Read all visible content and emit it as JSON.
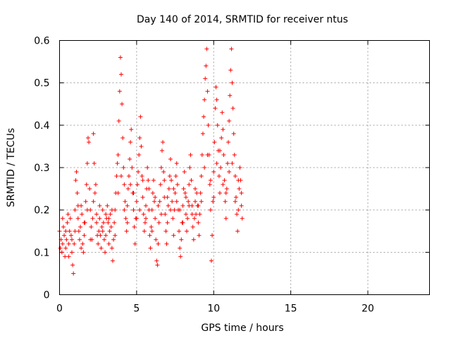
{
  "chart_data": {
    "type": "scatter",
    "title": "Day 140 of 2014, SRMTID for receiver ntus",
    "xlabel": "GPS time / hours",
    "ylabel": "SRMTID / TECUs",
    "xlim": [
      0,
      24
    ],
    "ylim": [
      0,
      0.6
    ],
    "x_ticks": [
      0,
      5,
      10,
      15,
      20
    ],
    "x_tick_labels": [
      "0",
      "5",
      "10",
      "15",
      "20"
    ],
    "y_ticks": [
      0,
      0.1,
      0.2,
      0.3,
      0.4,
      0.5,
      0.6
    ],
    "y_tick_labels": [
      "0",
      "0.1",
      "0.2",
      "0.3",
      "0.4",
      "0.5",
      "0.6"
    ],
    "grid": true,
    "marker": "plus",
    "color": "#ff0000",
    "series": [
      {
        "name": "SRMTID",
        "points": [
          [
            0.0,
            0.15
          ],
          [
            0.05,
            0.11
          ],
          [
            0.1,
            0.13
          ],
          [
            0.15,
            0.1
          ],
          [
            0.2,
            0.12
          ],
          [
            0.25,
            0.16
          ],
          [
            0.3,
            0.14
          ],
          [
            0.35,
            0.09
          ],
          [
            0.4,
            0.11
          ],
          [
            0.45,
            0.13
          ],
          [
            0.5,
            0.17
          ],
          [
            0.55,
            0.19
          ],
          [
            0.6,
            0.12
          ],
          [
            0.65,
            0.15
          ],
          [
            0.7,
            0.18
          ],
          [
            0.75,
            0.14
          ],
          [
            0.8,
            0.1
          ],
          [
            0.85,
            0.07
          ],
          [
            0.9,
            0.05
          ],
          [
            0.95,
            0.12
          ],
          [
            1.0,
            0.2
          ],
          [
            1.05,
            0.27
          ],
          [
            1.1,
            0.29
          ],
          [
            1.15,
            0.24
          ],
          [
            1.2,
            0.18
          ],
          [
            1.25,
            0.15
          ],
          [
            1.3,
            0.13
          ],
          [
            1.35,
            0.16
          ],
          [
            1.4,
            0.21
          ],
          [
            1.45,
            0.19
          ],
          [
            1.5,
            0.12
          ],
          [
            1.55,
            0.1
          ],
          [
            1.6,
            0.14
          ],
          [
            1.65,
            0.17
          ],
          [
            1.7,
            0.22
          ],
          [
            1.75,
            0.26
          ],
          [
            1.8,
            0.31
          ],
          [
            1.85,
            0.37
          ],
          [
            1.9,
            0.36
          ],
          [
            1.95,
            0.25
          ],
          [
            2.0,
            0.2
          ],
          [
            2.05,
            0.16
          ],
          [
            2.1,
            0.13
          ],
          [
            2.15,
            0.18
          ],
          [
            2.2,
            0.38
          ],
          [
            2.25,
            0.31
          ],
          [
            2.3,
            0.24
          ],
          [
            2.35,
            0.26
          ],
          [
            2.4,
            0.19
          ],
          [
            2.45,
            0.14
          ],
          [
            2.5,
            0.12
          ],
          [
            2.55,
            0.15
          ],
          [
            2.6,
            0.18
          ],
          [
            2.65,
            0.14
          ],
          [
            2.7,
            0.11
          ],
          [
            2.75,
            0.16
          ],
          [
            2.8,
            0.2
          ],
          [
            2.85,
            0.17
          ],
          [
            2.9,
            0.13
          ],
          [
            2.95,
            0.1
          ],
          [
            3.0,
            0.14
          ],
          [
            3.05,
            0.18
          ],
          [
            3.1,
            0.21
          ],
          [
            3.15,
            0.17
          ],
          [
            3.2,
            0.12
          ],
          [
            3.25,
            0.15
          ],
          [
            3.3,
            0.19
          ],
          [
            3.35,
            0.16
          ],
          [
            3.4,
            0.11
          ],
          [
            3.45,
            0.08
          ],
          [
            3.5,
            0.13
          ],
          [
            3.55,
            0.17
          ],
          [
            3.6,
            0.2
          ],
          [
            3.65,
            0.24
          ],
          [
            3.7,
            0.28
          ],
          [
            3.75,
            0.31
          ],
          [
            3.8,
            0.33
          ],
          [
            3.85,
            0.41
          ],
          [
            3.9,
            0.48
          ],
          [
            3.95,
            0.56
          ],
          [
            4.0,
            0.52
          ],
          [
            4.05,
            0.45
          ],
          [
            4.1,
            0.37
          ],
          [
            4.15,
            0.3
          ],
          [
            4.2,
            0.26
          ],
          [
            4.25,
            0.22
          ],
          [
            4.3,
            0.18
          ],
          [
            4.35,
            0.15
          ],
          [
            4.4,
            0.21
          ],
          [
            4.45,
            0.25
          ],
          [
            4.5,
            0.28
          ],
          [
            4.55,
            0.32
          ],
          [
            4.6,
            0.36
          ],
          [
            4.65,
            0.39
          ],
          [
            4.7,
            0.3
          ],
          [
            4.75,
            0.24
          ],
          [
            4.8,
            0.2
          ],
          [
            4.85,
            0.16
          ],
          [
            4.9,
            0.12
          ],
          [
            4.95,
            0.18
          ],
          [
            5.0,
            0.22
          ],
          [
            5.05,
            0.26
          ],
          [
            5.1,
            0.29
          ],
          [
            5.15,
            0.33
          ],
          [
            5.2,
            0.37
          ],
          [
            5.25,
            0.42
          ],
          [
            5.3,
            0.35
          ],
          [
            5.35,
            0.28
          ],
          [
            5.4,
            0.23
          ],
          [
            5.45,
            0.19
          ],
          [
            5.5,
            0.15
          ],
          [
            5.55,
            0.17
          ],
          [
            5.6,
            0.21
          ],
          [
            5.65,
            0.25
          ],
          [
            5.7,
            0.3
          ],
          [
            5.75,
            0.27
          ],
          [
            5.8,
            0.2
          ],
          [
            5.85,
            0.14
          ],
          [
            5.9,
            0.11
          ],
          [
            5.95,
            0.16
          ],
          [
            6.0,
            0.2
          ],
          [
            6.05,
            0.24
          ],
          [
            6.1,
            0.27
          ],
          [
            6.15,
            0.22
          ],
          [
            6.2,
            0.18
          ],
          [
            6.25,
            0.13
          ],
          [
            6.3,
            0.08
          ],
          [
            6.35,
            0.07
          ],
          [
            6.4,
            0.12
          ],
          [
            6.45,
            0.17
          ],
          [
            6.5,
            0.22
          ],
          [
            6.55,
            0.26
          ],
          [
            6.6,
            0.3
          ],
          [
            6.65,
            0.34
          ],
          [
            6.7,
            0.36
          ],
          [
            6.75,
            0.29
          ],
          [
            6.8,
            0.23
          ],
          [
            6.85,
            0.19
          ],
          [
            6.9,
            0.15
          ],
          [
            6.95,
            0.12
          ],
          [
            7.0,
            0.17
          ],
          [
            7.05,
            0.21
          ],
          [
            7.1,
            0.25
          ],
          [
            7.15,
            0.28
          ],
          [
            7.2,
            0.32
          ],
          [
            7.25,
            0.27
          ],
          [
            7.3,
            0.22
          ],
          [
            7.35,
            0.18
          ],
          [
            7.4,
            0.14
          ],
          [
            7.45,
            0.2
          ],
          [
            7.5,
            0.24
          ],
          [
            7.55,
            0.28
          ],
          [
            7.6,
            0.31
          ],
          [
            7.65,
            0.26
          ],
          [
            7.7,
            0.2
          ],
          [
            7.75,
            0.15
          ],
          [
            7.8,
            0.11
          ],
          [
            7.85,
            0.09
          ],
          [
            7.9,
            0.13
          ],
          [
            7.95,
            0.17
          ],
          [
            8.0,
            0.21
          ],
          [
            8.05,
            0.25
          ],
          [
            8.1,
            0.29
          ],
          [
            8.15,
            0.24
          ],
          [
            8.2,
            0.19
          ],
          [
            8.25,
            0.15
          ],
          [
            8.3,
            0.18
          ],
          [
            8.35,
            0.22
          ],
          [
            8.4,
            0.26
          ],
          [
            8.45,
            0.3
          ],
          [
            8.5,
            0.33
          ],
          [
            8.55,
            0.27
          ],
          [
            8.6,
            0.21
          ],
          [
            8.65,
            0.16
          ],
          [
            8.7,
            0.13
          ],
          [
            8.75,
            0.18
          ],
          [
            8.8,
            0.22
          ],
          [
            8.85,
            0.19
          ],
          [
            8.9,
            0.24
          ],
          [
            8.95,
            0.21
          ],
          [
            9.0,
            0.17
          ],
          [
            9.05,
            0.14
          ],
          [
            9.1,
            0.19
          ],
          [
            9.15,
            0.24
          ],
          [
            9.2,
            0.28
          ],
          [
            9.25,
            0.33
          ],
          [
            9.3,
            0.38
          ],
          [
            9.35,
            0.42
          ],
          [
            9.4,
            0.46
          ],
          [
            9.45,
            0.51
          ],
          [
            9.5,
            0.54
          ],
          [
            9.55,
            0.58
          ],
          [
            9.6,
            0.48
          ],
          [
            9.65,
            0.4
          ],
          [
            9.7,
            0.33
          ],
          [
            9.75,
            0.26
          ],
          [
            9.8,
            0.2
          ],
          [
            9.85,
            0.08
          ],
          [
            9.9,
            0.14
          ],
          [
            9.95,
            0.22
          ],
          [
            10.0,
            0.29
          ],
          [
            10.05,
            0.36
          ],
          [
            10.1,
            0.44
          ],
          [
            10.15,
            0.49
          ],
          [
            10.2,
            0.46
          ],
          [
            10.25,
            0.4
          ],
          [
            10.3,
            0.34
          ],
          [
            10.35,
            0.28
          ],
          [
            10.4,
            0.24
          ],
          [
            10.45,
            0.3
          ],
          [
            10.5,
            0.37
          ],
          [
            10.55,
            0.43
          ],
          [
            10.6,
            0.39
          ],
          [
            10.65,
            0.33
          ],
          [
            10.7,
            0.27
          ],
          [
            10.75,
            0.22
          ],
          [
            10.8,
            0.18
          ],
          [
            10.85,
            0.25
          ],
          [
            10.9,
            0.31
          ],
          [
            10.95,
            0.36
          ],
          [
            11.0,
            0.41
          ],
          [
            11.05,
            0.47
          ],
          [
            11.1,
            0.53
          ],
          [
            11.15,
            0.58
          ],
          [
            11.2,
            0.5
          ],
          [
            11.25,
            0.44
          ],
          [
            11.3,
            0.38
          ],
          [
            11.35,
            0.33
          ],
          [
            11.4,
            0.28
          ],
          [
            11.45,
            0.23
          ],
          [
            11.5,
            0.19
          ],
          [
            11.55,
            0.15
          ],
          [
            11.6,
            0.2
          ],
          [
            11.65,
            0.25
          ],
          [
            11.7,
            0.3
          ],
          [
            11.75,
            0.27
          ],
          [
            11.8,
            0.21
          ],
          [
            11.85,
            0.18
          ],
          [
            0.2,
            0.18
          ],
          [
            0.6,
            0.09
          ],
          [
            1.0,
            0.15
          ],
          [
            1.4,
            0.11
          ],
          [
            1.8,
            0.2
          ],
          [
            2.2,
            0.22
          ],
          [
            2.6,
            0.21
          ],
          [
            3.0,
            0.19
          ],
          [
            3.4,
            0.2
          ],
          [
            3.8,
            0.24
          ],
          [
            4.2,
            0.2
          ],
          [
            4.6,
            0.26
          ],
          [
            5.0,
            0.18
          ],
          [
            5.4,
            0.27
          ],
          [
            5.8,
            0.25
          ],
          [
            6.2,
            0.23
          ],
          [
            6.6,
            0.19
          ],
          [
            7.0,
            0.23
          ],
          [
            7.4,
            0.25
          ],
          [
            7.8,
            0.2
          ],
          [
            8.2,
            0.23
          ],
          [
            8.6,
            0.19
          ],
          [
            9.0,
            0.21
          ],
          [
            9.4,
            0.3
          ],
          [
            9.8,
            0.27
          ],
          [
            10.2,
            0.31
          ],
          [
            10.6,
            0.26
          ],
          [
            11.0,
            0.29
          ],
          [
            11.4,
            0.22
          ],
          [
            11.8,
            0.24
          ],
          [
            0.4,
            0.15
          ],
          [
            0.8,
            0.13
          ],
          [
            1.2,
            0.21
          ],
          [
            1.6,
            0.17
          ],
          [
            2.0,
            0.13
          ],
          [
            2.4,
            0.17
          ],
          [
            2.8,
            0.15
          ],
          [
            3.2,
            0.18
          ],
          [
            3.6,
            0.14
          ],
          [
            4.0,
            0.28
          ],
          [
            4.4,
            0.17
          ],
          [
            4.8,
            0.24
          ],
          [
            5.2,
            0.2
          ],
          [
            5.6,
            0.18
          ],
          [
            6.0,
            0.15
          ],
          [
            6.4,
            0.21
          ],
          [
            6.8,
            0.27
          ],
          [
            7.2,
            0.2
          ],
          [
            7.6,
            0.22
          ],
          [
            8.0,
            0.17
          ],
          [
            8.4,
            0.21
          ],
          [
            8.8,
            0.25
          ],
          [
            9.2,
            0.22
          ],
          [
            9.6,
            0.33
          ],
          [
            10.0,
            0.23
          ],
          [
            10.4,
            0.34
          ],
          [
            10.8,
            0.24
          ],
          [
            11.2,
            0.31
          ],
          [
            11.6,
            0.27
          ]
        ]
      }
    ]
  }
}
